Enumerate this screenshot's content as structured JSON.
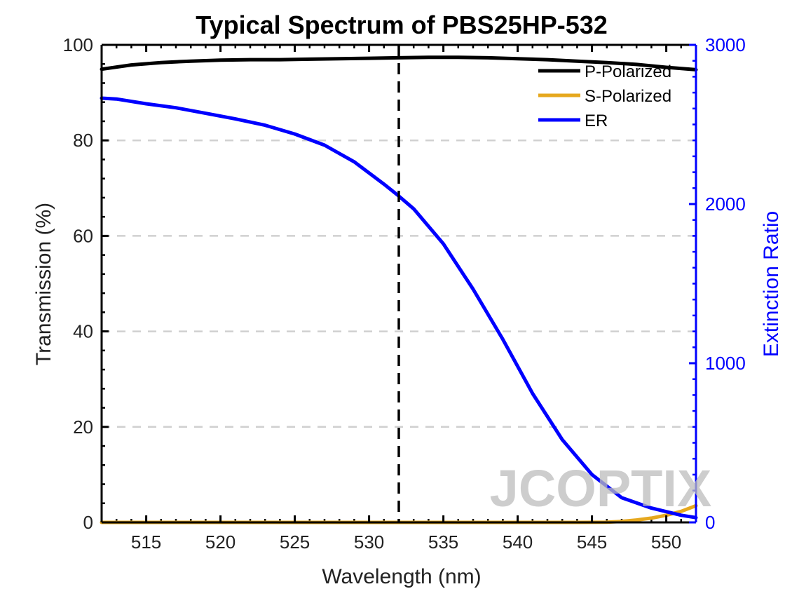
{
  "chart_data": {
    "type": "line",
    "title": "Typical Spectrum of PBS25HP-532",
    "xlabel": "Wavelength (nm)",
    "ylabel": "Transmission (%)",
    "y2label": "Extinction Ratio",
    "xlim": [
      512,
      552
    ],
    "ylim": [
      0,
      100
    ],
    "y2lim": [
      0,
      3000
    ],
    "xticks": [
      515,
      520,
      525,
      530,
      535,
      540,
      545,
      550
    ],
    "yticks": [
      0,
      20,
      40,
      60,
      80,
      100
    ],
    "y2ticks": [
      0,
      1000,
      2000,
      3000
    ],
    "grid": "horizontal dashed",
    "legend_position": "top-right",
    "reference_line_x": 532,
    "series": [
      {
        "name": "P-Polarized",
        "axis": "left",
        "color": "#000000",
        "x": [
          512,
          514,
          516,
          518,
          520,
          522,
          524,
          526,
          528,
          530,
          532,
          534,
          536,
          538,
          540,
          542,
          544,
          546,
          548,
          550,
          552
        ],
        "values": [
          94.9,
          95.8,
          96.3,
          96.6,
          96.8,
          96.9,
          96.9,
          97.0,
          97.1,
          97.2,
          97.3,
          97.4,
          97.4,
          97.3,
          97.1,
          96.9,
          96.6,
          96.3,
          95.9,
          95.3,
          94.8
        ]
      },
      {
        "name": "S-Polarized",
        "axis": "left",
        "color": "#e6a81e",
        "x": [
          512,
          520,
          530,
          540,
          544,
          546,
          547,
          548,
          549,
          550,
          551,
          552
        ],
        "values": [
          0,
          0,
          0,
          0,
          0,
          0.05,
          0.2,
          0.5,
          0.9,
          1.5,
          2.3,
          3.5
        ]
      },
      {
        "name": "ER",
        "axis": "right",
        "color": "#0000ff",
        "x": [
          512,
          513,
          515,
          517,
          519,
          521,
          523,
          525,
          527,
          529,
          531,
          532,
          533,
          535,
          537,
          539,
          541,
          543,
          545,
          547,
          549,
          551,
          552
        ],
        "values": [
          2665,
          2660,
          2630,
          2605,
          2570,
          2535,
          2495,
          2440,
          2370,
          2265,
          2125,
          2050,
          1970,
          1750,
          1465,
          1150,
          810,
          520,
          300,
          155,
          90,
          45,
          30
        ]
      }
    ]
  },
  "watermark": {
    "text": "JCOPTIX"
  }
}
